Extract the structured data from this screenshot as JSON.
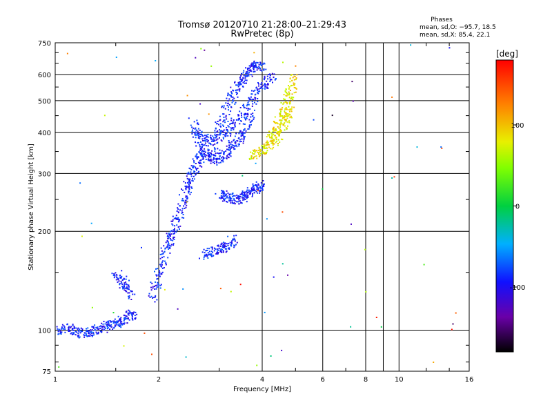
{
  "chart_data": {
    "type": "scatter",
    "title": "Tromsø 20120710 21:28:00–21:29:43",
    "subtitle": "RwPretec (8p)",
    "xlabel": "Frequency [MHz]",
    "ylabel": "Stationary phase Virtual Height [km]",
    "x_scale": "log",
    "y_scale": "log",
    "xlim": [
      1,
      16
    ],
    "ylim": [
      75,
      750
    ],
    "x_ticks": [
      1,
      2,
      4,
      6,
      8,
      10,
      16
    ],
    "y_ticks": [
      75,
      100,
      200,
      300,
      400,
      500,
      600,
      750
    ],
    "grid": true,
    "stats": {
      "heading": "Phases",
      "line_o": "mean, sd,O: −95.7, 18.5",
      "line_x": "mean, sd,X:  85.4, 22.1"
    },
    "colorbar": {
      "label": "[deg]",
      "ticks": [
        100,
        0,
        -100
      ],
      "range": [
        -180,
        180
      ],
      "colormap": "rainbow"
    },
    "series": [
      {
        "name": "O",
        "color_phase": -95,
        "traces": [
          {
            "x": [
              1.0,
              1.1,
              1.2,
              1.3,
              1.4,
              1.5,
              1.6,
              1.7
            ],
            "y": [
              100,
              102,
              98,
              100,
              103,
              106,
              109,
              113
            ]
          },
          {
            "x": [
              1.9,
              2.0,
              2.1,
              2.2,
              2.3,
              2.4,
              2.5,
              2.6,
              2.7
            ],
            "y": [
              125,
              150,
              180,
              200,
              230,
              270,
              300,
              330,
              360
            ]
          },
          {
            "x": [
              2.5,
              2.7,
              2.9,
              3.1,
              3.3,
              3.5,
              3.7
            ],
            "y": [
              440,
              345,
              330,
              345,
              370,
              400,
              460
            ]
          },
          {
            "x": [
              2.5,
              2.8,
              3.1,
              3.4,
              3.7,
              4.0,
              4.3
            ],
            "y": [
              400,
              380,
              400,
              440,
              500,
              560,
              600
            ]
          },
          {
            "x": [
              2.8,
              3.0,
              3.2,
              3.4,
              3.6,
              3.8,
              4.0
            ],
            "y": [
              330,
              420,
              500,
              560,
              610,
              640,
              640
            ]
          },
          {
            "x": [
              3.0,
              3.2,
              3.4,
              3.6,
              3.8,
              4.0
            ],
            "y": [
              260,
              255,
              250,
              260,
              270,
              280
            ]
          },
          {
            "x": [
              2.7,
              2.9,
              3.1,
              3.3
            ],
            "y": [
              170,
              175,
              180,
              190
            ]
          },
          {
            "x": [
              1.5,
              1.58,
              1.65
            ],
            "y": [
              150,
              140,
              128
            ]
          }
        ]
      },
      {
        "name": "X",
        "color_phase": 85,
        "traces": [
          {
            "x": [
              3.7,
              4.0,
              4.3,
              4.6,
              4.8
            ],
            "y": [
              340,
              355,
              375,
              420,
              480
            ]
          },
          {
            "x": [
              4.2,
              4.4,
              4.6,
              4.8,
              5.0
            ],
            "y": [
              380,
              420,
              470,
              530,
              590
            ]
          }
        ]
      }
    ]
  }
}
